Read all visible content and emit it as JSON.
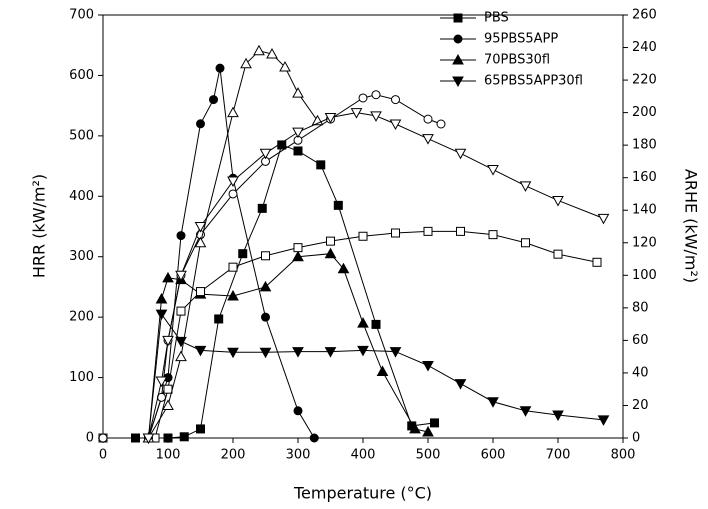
{
  "chart_data": {
    "type": "line",
    "xlabel": "Temperature (°C)",
    "ylabel": "HRR (kW/m²)",
    "y2label": "ARHE (kW/m²)",
    "xlim": [
      0,
      800
    ],
    "xticks": [
      0,
      100,
      200,
      300,
      400,
      500,
      600,
      700,
      800
    ],
    "ylim": [
      0,
      700
    ],
    "yticks": [
      0,
      100,
      200,
      300,
      400,
      500,
      600,
      700
    ],
    "y2lim": [
      0,
      260
    ],
    "y2ticks": [
      0,
      20,
      40,
      60,
      80,
      100,
      120,
      140,
      160,
      180,
      200,
      220,
      240,
      260
    ],
    "legend": "upper right",
    "series": [
      {
        "name": "PBS",
        "color": "#000000",
        "marker": "square",
        "filled": true,
        "axis": "y",
        "x": [
          0,
          50,
          100,
          125,
          150,
          178,
          215,
          245,
          275,
          300,
          335,
          362,
          420,
          475,
          510
        ],
        "values": [
          0,
          0,
          0,
          2,
          15,
          197,
          305,
          380,
          485,
          475,
          452,
          385,
          188,
          20,
          25
        ]
      },
      {
        "name": "95PBS5APP",
        "color": "#000000",
        "marker": "circle",
        "filled": true,
        "axis": "y",
        "x": [
          0,
          70,
          100,
          120,
          150,
          170,
          180,
          200,
          250,
          300,
          325
        ],
        "values": [
          0,
          0,
          100,
          335,
          520,
          560,
          612,
          430,
          200,
          45,
          0
        ]
      },
      {
        "name": "70PBS30fl",
        "color": "#000000",
        "marker": "triangle-up",
        "filled": true,
        "axis": "y",
        "x": [
          70,
          90,
          100,
          120,
          150,
          200,
          250,
          300,
          350,
          370,
          400,
          430,
          480,
          500
        ],
        "values": [
          0,
          230,
          265,
          262,
          238,
          235,
          250,
          300,
          305,
          280,
          190,
          110,
          15,
          10
        ]
      },
      {
        "name": "65PBS5APP30fl",
        "color": "#000000",
        "marker": "triangle-down",
        "filled": true,
        "axis": "y",
        "x": [
          70,
          90,
          120,
          150,
          200,
          250,
          300,
          350,
          400,
          450,
          500,
          550,
          600,
          650,
          700,
          770
        ],
        "values": [
          0,
          205,
          160,
          145,
          142,
          142,
          143,
          143,
          145,
          143,
          120,
          90,
          60,
          45,
          38,
          30
        ]
      },
      {
        "color": "#000000",
        "marker": "square",
        "filled": false,
        "axis": "y2",
        "x": [
          0,
          80,
          100,
          120,
          150,
          200,
          250,
          300,
          350,
          400,
          450,
          500,
          550,
          600,
          650,
          700,
          760
        ],
        "values": [
          0,
          0,
          30,
          78,
          90,
          105,
          112,
          117,
          121,
          124,
          126,
          127,
          127,
          125,
          120,
          113,
          108
        ]
      },
      {
        "color": "#000000",
        "marker": "circle",
        "filled": false,
        "axis": "y2",
        "x": [
          0,
          70,
          90,
          100,
          120,
          150,
          200,
          250,
          300,
          350,
          400,
          420,
          450,
          500,
          520
        ],
        "values": [
          0,
          0,
          25,
          60,
          100,
          125,
          150,
          170,
          183,
          196,
          209,
          211,
          208,
          196,
          193
        ]
      },
      {
        "color": "#000000",
        "marker": "triangle-up",
        "filled": false,
        "axis": "y2",
        "x": [
          70,
          100,
          120,
          150,
          200,
          220,
          240,
          260,
          280,
          300,
          330
        ],
        "values": [
          0,
          20,
          50,
          120,
          200,
          230,
          238,
          236,
          228,
          212,
          195
        ]
      },
      {
        "color": "#000000",
        "marker": "triangle-down",
        "filled": false,
        "axis": "y2",
        "x": [
          70,
          90,
          100,
          120,
          150,
          200,
          250,
          300,
          350,
          390,
          420,
          450,
          500,
          550,
          600,
          650,
          700,
          770
        ],
        "values": [
          0,
          35,
          60,
          100,
          130,
          158,
          175,
          188,
          197,
          200,
          198,
          193,
          184,
          175,
          165,
          155,
          146,
          135
        ]
      }
    ]
  }
}
